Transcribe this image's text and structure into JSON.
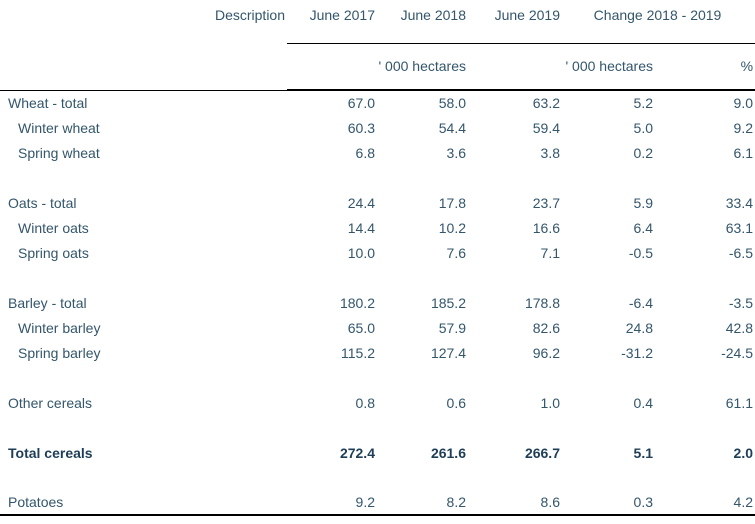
{
  "colors": {
    "text": "#33566b",
    "bold_text": "#1e3e57",
    "line": "#000000",
    "background": "#ffffff"
  },
  "chart_data": {
    "type": "table",
    "description_label": "Description",
    "column_headers": [
      "June 2017",
      "June 2018",
      "June 2019",
      "Change 2018 - 2019"
    ],
    "unit_headers": [
      "' 000 hectares",
      "' 000 hectares",
      "%"
    ],
    "value_columns": [
      "June 2017 ('000 ha)",
      "June 2018 ('000 ha)",
      "June 2019 ('000 ha)",
      "Change 2018-2019 ('000 ha)",
      "Change 2018-2019 (%)"
    ],
    "sections": [
      {
        "rows": [
          {
            "label": "Wheat - total",
            "indent": false,
            "bold": false,
            "values": [
              "67.0",
              "58.0",
              "63.2",
              "5.2",
              "9.0"
            ]
          },
          {
            "label": "Winter wheat",
            "indent": true,
            "bold": false,
            "values": [
              "60.3",
              "54.4",
              "59.4",
              "5.0",
              "9.2"
            ]
          },
          {
            "label": "Spring wheat",
            "indent": true,
            "bold": false,
            "values": [
              "6.8",
              "3.6",
              "3.8",
              "0.2",
              "6.1"
            ]
          }
        ]
      },
      {
        "rows": [
          {
            "label": "Oats - total",
            "indent": false,
            "bold": false,
            "values": [
              "24.4",
              "17.8",
              "23.7",
              "5.9",
              "33.4"
            ]
          },
          {
            "label": "Winter oats",
            "indent": true,
            "bold": false,
            "values": [
              "14.4",
              "10.2",
              "16.6",
              "6.4",
              "63.1"
            ]
          },
          {
            "label": "Spring oats",
            "indent": true,
            "bold": false,
            "values": [
              "10.0",
              "7.6",
              "7.1",
              "-0.5",
              "-6.5"
            ]
          }
        ]
      },
      {
        "rows": [
          {
            "label": "Barley - total",
            "indent": false,
            "bold": false,
            "values": [
              "180.2",
              "185.2",
              "178.8",
              "-6.4",
              "-3.5"
            ]
          },
          {
            "label": "Winter barley",
            "indent": true,
            "bold": false,
            "values": [
              "65.0",
              "57.9",
              "82.6",
              "24.8",
              "42.8"
            ]
          },
          {
            "label": "Spring barley",
            "indent": true,
            "bold": false,
            "values": [
              "115.2",
              "127.4",
              "96.2",
              "-31.2",
              "-24.5"
            ]
          }
        ]
      },
      {
        "rows": [
          {
            "label": "Other cereals",
            "indent": false,
            "bold": false,
            "values": [
              "0.8",
              "0.6",
              "1.0",
              "0.4",
              "61.1"
            ]
          }
        ]
      },
      {
        "rows": [
          {
            "label": "Total cereals",
            "indent": false,
            "bold": true,
            "values": [
              "272.4",
              "261.6",
              "266.7",
              "5.1",
              "2.0"
            ]
          }
        ]
      },
      {
        "rows": [
          {
            "label": "Potatoes",
            "indent": false,
            "bold": false,
            "values": [
              "9.2",
              "8.2",
              "8.6",
              "0.3",
              "4.2"
            ]
          }
        ]
      }
    ]
  }
}
